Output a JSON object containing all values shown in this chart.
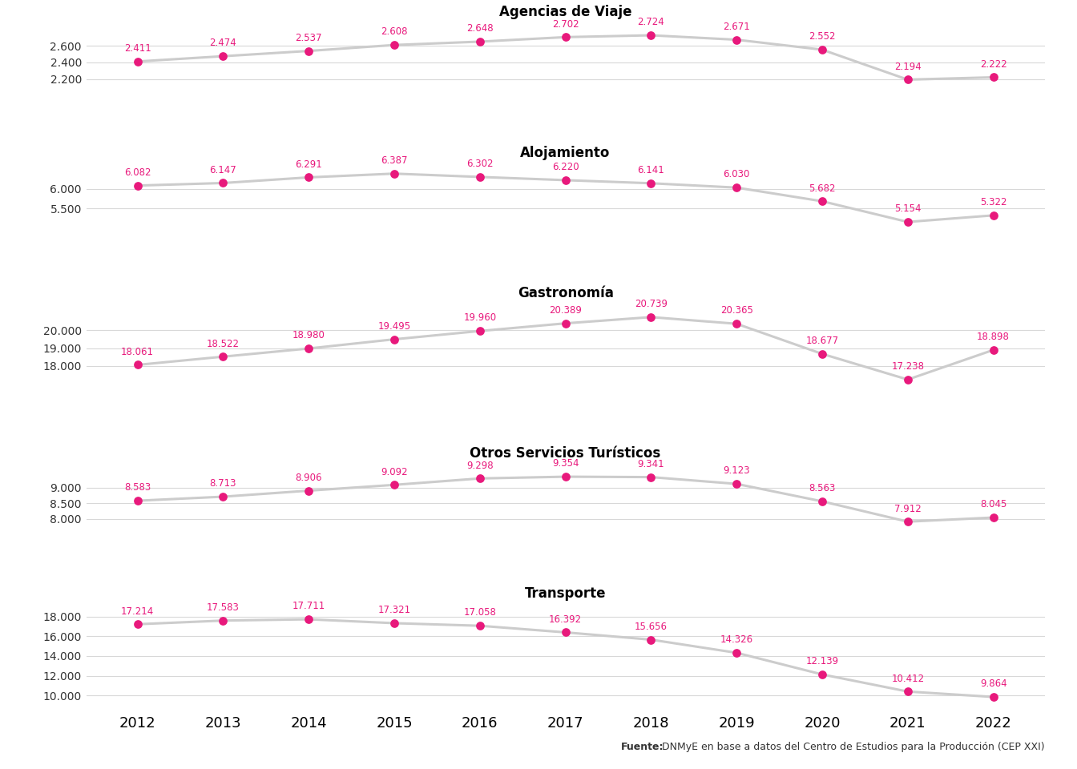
{
  "years": [
    2012,
    2013,
    2014,
    2015,
    2016,
    2017,
    2018,
    2019,
    2020,
    2021,
    2022
  ],
  "series": [
    {
      "title": "Agencias de Viaje",
      "values": [
        2411,
        2474,
        2537,
        2608,
        2648,
        2702,
        2724,
        2671,
        2552,
        2194,
        2222
      ],
      "labels": [
        "2.411",
        "2.474",
        "2.537",
        "2.608",
        "2.648",
        "2.702",
        "2.724",
        "2.671",
        "2.552",
        "2.194",
        "2.222"
      ],
      "yticks": [
        2200,
        2400,
        2600
      ],
      "ylim": [
        2050,
        2870
      ]
    },
    {
      "title": "Alojamiento",
      "values": [
        6082,
        6147,
        6291,
        6387,
        6302,
        6220,
        6141,
        6030,
        5682,
        5154,
        5322
      ],
      "labels": [
        "6.082",
        "6.147",
        "6.291",
        "6.387",
        "6.302",
        "6.220",
        "6.141",
        "6.030",
        "5.682",
        "5.154",
        "5.322"
      ],
      "yticks": [
        5500,
        6000
      ],
      "ylim": [
        4900,
        6650
      ]
    },
    {
      "title": "Gastronomía",
      "values": [
        18061,
        18522,
        18980,
        19495,
        19960,
        20389,
        20739,
        20365,
        18677,
        17238,
        18898
      ],
      "labels": [
        "18.061",
        "18.522",
        "18.980",
        "19.495",
        "19.960",
        "20.389",
        "20.739",
        "20.365",
        "18.677",
        "17.238",
        "18.898"
      ],
      "yticks": [
        18000,
        19000,
        20000
      ],
      "ylim": [
        16500,
        21500
      ]
    },
    {
      "title": "Otros Servicios Turísticos",
      "values": [
        8583,
        8713,
        8906,
        9092,
        9298,
        9354,
        9341,
        9123,
        8563,
        7912,
        8045
      ],
      "labels": [
        "8.583",
        "8.713",
        "8.906",
        "9.092",
        "9.298",
        "9.354",
        "9.341",
        "9.123",
        "8.563",
        "7.912",
        "8.045"
      ],
      "yticks": [
        8000,
        8500,
        9000
      ],
      "ylim": [
        7550,
        9750
      ]
    },
    {
      "title": "Transporte",
      "values": [
        17214,
        17583,
        17711,
        17321,
        17058,
        16392,
        15656,
        14326,
        12139,
        10412,
        9864
      ],
      "labels": [
        "17.214",
        "17.583",
        "17.711",
        "17.321",
        "17.058",
        "16.392",
        "15.656",
        "14.326",
        "12.139",
        "10.412",
        "9.864"
      ],
      "yticks": [
        10000,
        12000,
        14000,
        16000,
        18000
      ],
      "ylim": [
        8800,
        19200
      ]
    }
  ],
  "line_color": "#cccccc",
  "dot_color": "#e8197c",
  "label_color": "#e8197c",
  "title_fontsize": 12,
  "label_fontsize": 8.5,
  "ytick_fontsize": 10,
  "xtick_fontsize": 13,
  "background_color": "#ffffff",
  "source_bold": "Fuente:",
  "source_rest": " DNMyE en base a datos del Centro de Estudios para la Producción (CEP XXI)"
}
